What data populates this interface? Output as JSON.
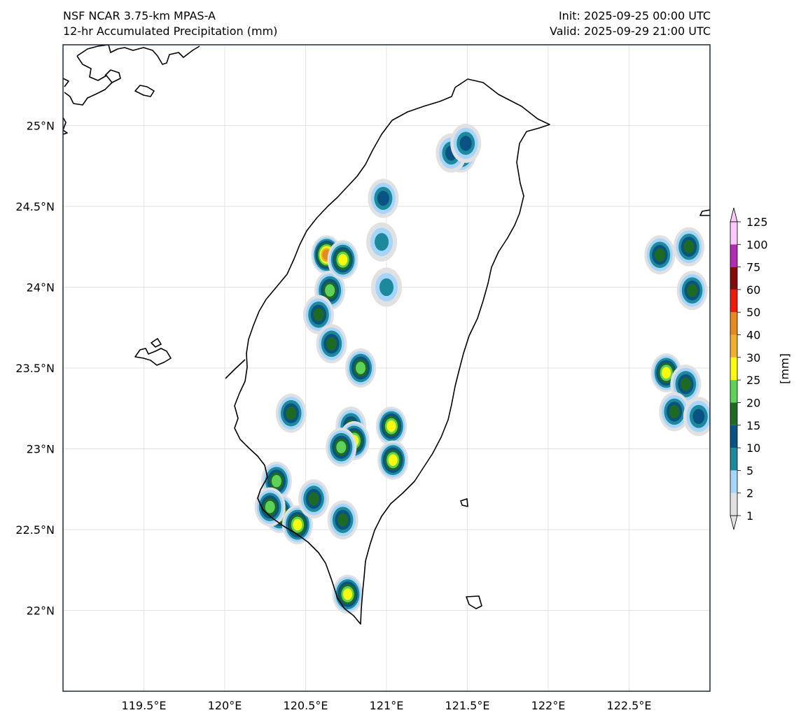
{
  "header": {
    "title_line1": "NSF NCAR 3.75-km MPAS-A",
    "title_line2": "12-hr Accumulated Precipitation (mm)",
    "init": "Init: 2025-09-25 00:00 UTC",
    "valid": "Valid: 2025-09-29 21:00 UTC"
  },
  "map": {
    "extent": {
      "lon": [
        119.0,
        123.0
      ],
      "lat": [
        21.5,
        25.5
      ]
    },
    "lon_ticks": [
      {
        "value": 119.5,
        "label": "119.5°E"
      },
      {
        "value": 120.0,
        "label": "120°E"
      },
      {
        "value": 120.5,
        "label": "120.5°E"
      },
      {
        "value": 121.0,
        "label": "121°E"
      },
      {
        "value": 121.5,
        "label": "121.5°E"
      },
      {
        "value": 122.0,
        "label": "122°E"
      },
      {
        "value": 122.5,
        "label": "122.5°E"
      }
    ],
    "lat_ticks": [
      {
        "value": 25.0,
        "label": "25°N"
      },
      {
        "value": 24.5,
        "label": "24.5°N"
      },
      {
        "value": 24.0,
        "label": "24°N"
      },
      {
        "value": 23.5,
        "label": "23.5°N"
      },
      {
        "value": 23.0,
        "label": "23°N"
      },
      {
        "value": 22.5,
        "label": "22.5°N"
      },
      {
        "value": 22.0,
        "label": "22°N"
      }
    ],
    "gridlines": true
  },
  "colorbar": {
    "unit_label": "[mm]",
    "levels": [
      "1",
      "2",
      "5",
      "10",
      "15",
      "20",
      "25",
      "30",
      "40",
      "50",
      "60",
      "75",
      "100",
      "125"
    ],
    "colors": [
      "#e1e1e1",
      "#a6d5fb",
      "#1c8a9c",
      "#0a5284",
      "#1d6a24",
      "#5ed158",
      "#f9fa0c",
      "#f0b02c",
      "#e58a20",
      "#ef1a0a",
      "#860a0a",
      "#b12cb3",
      "#fbc9fb"
    ],
    "extend": "both"
  },
  "precip_cells": [
    {
      "name": "west-taiwan-cell",
      "lon": 120.63,
      "lat": 24.2,
      "max": 40
    },
    {
      "name": "west-taiwan-cell",
      "lon": 120.65,
      "lat": 23.98,
      "max": 20
    },
    {
      "name": "west-taiwan-cell",
      "lon": 120.58,
      "lat": 23.83,
      "max": 15
    },
    {
      "name": "west-taiwan-cell",
      "lon": 120.73,
      "lat": 24.17,
      "max": 25
    },
    {
      "name": "central-cell",
      "lon": 120.66,
      "lat": 23.65,
      "max": 15
    },
    {
      "name": "central-cell",
      "lon": 120.84,
      "lat": 23.5,
      "max": 20
    },
    {
      "name": "central-cell",
      "lon": 120.41,
      "lat": 23.22,
      "max": 15
    },
    {
      "name": "central-cell",
      "lon": 120.78,
      "lat": 23.14,
      "max": 15
    },
    {
      "name": "central-cell",
      "lon": 120.8,
      "lat": 23.05,
      "max": 25
    },
    {
      "name": "central-cell",
      "lon": 120.72,
      "lat": 23.01,
      "max": 20
    },
    {
      "name": "central-cell",
      "lon": 121.03,
      "lat": 23.14,
      "max": 25
    },
    {
      "name": "central-cell",
      "lon": 121.04,
      "lat": 22.93,
      "max": 25
    },
    {
      "name": "central-cell",
      "lon": 120.98,
      "lat": 24.55,
      "max": 10
    },
    {
      "name": "central-cell",
      "lon": 120.97,
      "lat": 24.28,
      "max": 5
    },
    {
      "name": "central-cell",
      "lon": 121.0,
      "lat": 24.0,
      "max": 5
    },
    {
      "name": "northeast-cell",
      "lon": 121.46,
      "lat": 24.83,
      "max": 20
    },
    {
      "name": "northeast-cell",
      "lon": 121.4,
      "lat": 24.83,
      "max": 10
    },
    {
      "name": "northeast-cell",
      "lon": 121.49,
      "lat": 24.89,
      "max": 10
    },
    {
      "name": "southwest-cell",
      "lon": 120.32,
      "lat": 22.8,
      "max": 20
    },
    {
      "name": "southwest-cell",
      "lon": 120.34,
      "lat": 22.6,
      "max": 25
    },
    {
      "name": "southwest-cell",
      "lon": 120.28,
      "lat": 22.64,
      "max": 20
    },
    {
      "name": "southwest-cell",
      "lon": 120.45,
      "lat": 22.53,
      "max": 25
    },
    {
      "name": "southwest-cell",
      "lon": 120.55,
      "lat": 22.69,
      "max": 15
    },
    {
      "name": "southwest-cell",
      "lon": 120.73,
      "lat": 22.56,
      "max": 15
    },
    {
      "name": "south-tip-cell",
      "lon": 120.76,
      "lat": 22.1,
      "max": 25
    },
    {
      "name": "east-offshore-cell",
      "lon": 122.73,
      "lat": 23.47,
      "max": 25
    },
    {
      "name": "east-offshore-cell",
      "lon": 122.85,
      "lat": 23.4,
      "max": 15
    },
    {
      "name": "east-offshore-cell",
      "lon": 122.78,
      "lat": 23.23,
      "max": 15
    },
    {
      "name": "east-offshore-cell",
      "lon": 122.93,
      "lat": 23.2,
      "max": 10
    },
    {
      "name": "east-offshore-cell",
      "lon": 122.89,
      "lat": 23.98,
      "max": 15
    },
    {
      "name": "east-offshore-cell",
      "lon": 122.69,
      "lat": 24.2,
      "max": 15
    },
    {
      "name": "east-offshore-cell",
      "lon": 122.87,
      "lat": 24.25,
      "max": 15
    }
  ]
}
